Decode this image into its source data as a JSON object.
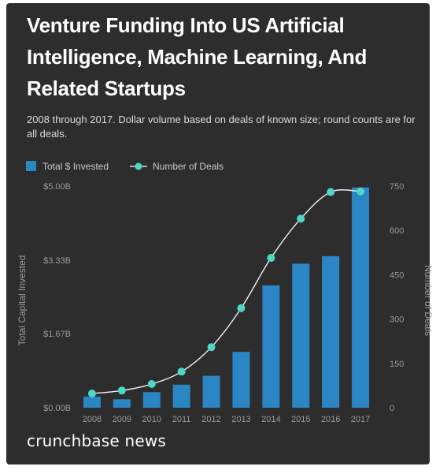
{
  "chart_data": {
    "type": "bar",
    "title": "Venture Funding Into US Artificial Intelligence, Machine Learning, And Related Startups",
    "subtitle": "2008 through 2017. Dollar volume based on deals of known size; round counts are for all deals.",
    "categories": [
      "2008",
      "2009",
      "2010",
      "2011",
      "2012",
      "2013",
      "2014",
      "2015",
      "2016",
      "2017"
    ],
    "series": [
      {
        "name": "Total $ Invested",
        "type": "bar",
        "axis": "left",
        "color": "#2b86c5",
        "values": [
          0.25,
          0.19,
          0.35,
          0.52,
          0.72,
          1.26,
          2.76,
          3.25,
          3.42,
          4.97
        ]
      },
      {
        "name": "Number of Deals",
        "type": "line",
        "axis": "right",
        "color": "#4ed8c4",
        "values": [
          48,
          58,
          80,
          122,
          205,
          337,
          507,
          640,
          730,
          732
        ]
      }
    ],
    "ylabel_left": "Total Capital Invested",
    "ylabel_right": "Number of Deals",
    "ylim_left": [
      0,
      5.0
    ],
    "ylim_right": [
      0,
      750
    ],
    "yticks_left": [
      "$0.00B",
      "$1.67B",
      "$3.33B",
      "$5.00B"
    ],
    "yticks_left_values": [
      0,
      1.67,
      3.33,
      5.0
    ],
    "yticks_right": [
      "0",
      "150",
      "300",
      "450",
      "600",
      "750"
    ],
    "yticks_right_values": [
      0,
      150,
      300,
      450,
      600,
      750
    ],
    "grid": false,
    "legend_position": "top-left"
  },
  "brand": "crunchbase news"
}
